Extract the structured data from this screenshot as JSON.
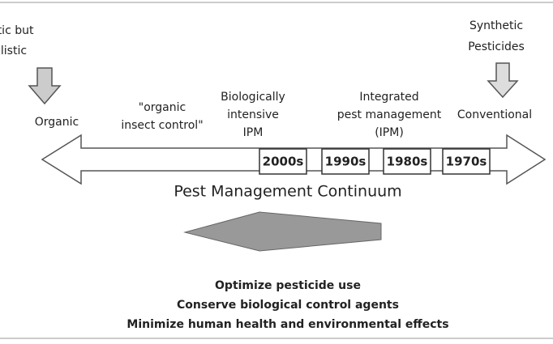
{
  "top_left": [
    "Holistic but",
    "legalistic"
  ],
  "top_right": [
    "Synthetic",
    "Pesticides"
  ],
  "positions": [
    [
      "Organic"
    ],
    [
      "\"organic",
      "insect control\""
    ],
    [
      "Biologically",
      "intensive",
      "IPM"
    ],
    [
      "Integrated",
      "pest management",
      "(IPM)"
    ],
    [
      "Conventional"
    ]
  ],
  "decades": [
    "2000s",
    "1990s",
    "1980s",
    "1970s"
  ],
  "title": "Pest Management Continuum",
  "goals": [
    "Optimize pesticide use",
    "Conserve biological control agents",
    "Minimize human health and environmental effects"
  ]
}
